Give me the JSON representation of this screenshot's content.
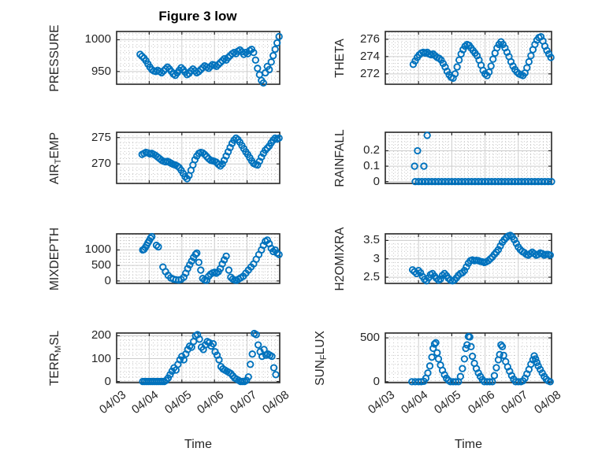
{
  "title": "Figure 3 low",
  "xlabel": "Time",
  "colors": {
    "marker": "#0072BD",
    "axis": "#262626",
    "major_grid": "#cdcdcd",
    "minor_grid": "#c6c6c6",
    "text": "#262626",
    "plot_bg": "#ffffff"
  },
  "x_tick_labels": [
    "04/03",
    "04/04",
    "04/05",
    "04/06",
    "04/07",
    "04/08"
  ],
  "chart_data": [
    {
      "name": "PRESSURE",
      "type": "scatter",
      "marker": "o",
      "row": 0,
      "col": 0,
      "ylabel_parts": [
        {
          "t": "PRESSURE"
        }
      ],
      "xlim": [
        0,
        5
      ],
      "ylim": [
        930,
        1013
      ],
      "yticks": [
        950,
        1000
      ],
      "ytick_labels": [
        "950",
        "1000"
      ],
      "x": [
        0.72,
        0.78,
        0.84,
        0.9,
        0.96,
        1.02,
        1.08,
        1.14,
        1.2,
        1.26,
        1.32,
        1.38,
        1.44,
        1.5,
        1.56,
        1.62,
        1.68,
        1.74,
        1.8,
        1.86,
        1.92,
        1.98,
        2.04,
        2.1,
        2.16,
        2.22,
        2.28,
        2.34,
        2.4,
        2.46,
        2.52,
        2.58,
        2.64,
        2.7,
        2.76,
        2.82,
        2.88,
        2.94,
        3.0,
        3.06,
        3.12,
        3.18,
        3.24,
        3.3,
        3.36,
        3.42,
        3.48,
        3.54,
        3.6,
        3.66,
        3.72,
        3.78,
        3.84,
        3.9,
        3.96,
        4.02,
        4.08,
        4.14,
        4.2,
        4.26,
        4.32,
        4.38,
        4.44,
        4.5,
        4.56,
        4.62,
        4.68,
        4.74,
        4.8,
        4.86,
        4.92,
        4.98
      ],
      "y": [
        977,
        974,
        971,
        967,
        962,
        957,
        953,
        951,
        950,
        952,
        950,
        948,
        951,
        954,
        957,
        954,
        950,
        946,
        944,
        948,
        952,
        956,
        953,
        949,
        945,
        947,
        951,
        954,
        951,
        948,
        950,
        953,
        956,
        959,
        957,
        955,
        958,
        961,
        960,
        958,
        961,
        964,
        967,
        970,
        968,
        972,
        975,
        978,
        980,
        978,
        982,
        984,
        981,
        977,
        980,
        978,
        983,
        985,
        980,
        968,
        955,
        945,
        936,
        932,
        948,
        958,
        953,
        965,
        975,
        985,
        995,
        1005
      ]
    },
    {
      "name": "THETA",
      "type": "scatter",
      "marker": "o",
      "row": 0,
      "col": 1,
      "ylabel_parts": [
        {
          "t": "THETA"
        }
      ],
      "xlim": [
        0,
        5
      ],
      "ylim": [
        270.8,
        276.9
      ],
      "yticks": [
        272,
        274,
        276
      ],
      "ytick_labels": [
        "272",
        "274",
        "276"
      ],
      "x": [
        0.84,
        0.9,
        0.96,
        1.02,
        1.08,
        1.14,
        1.2,
        1.26,
        1.32,
        1.38,
        1.44,
        1.5,
        1.56,
        1.62,
        1.68,
        1.74,
        1.8,
        1.86,
        1.92,
        1.98,
        2.04,
        2.1,
        2.16,
        2.22,
        2.28,
        2.34,
        2.4,
        2.46,
        2.52,
        2.58,
        2.64,
        2.7,
        2.76,
        2.82,
        2.88,
        2.94,
        3.0,
        3.06,
        3.12,
        3.18,
        3.24,
        3.3,
        3.36,
        3.42,
        3.48,
        3.54,
        3.6,
        3.66,
        3.72,
        3.78,
        3.84,
        3.9,
        3.96,
        4.02,
        4.08,
        4.14,
        4.2,
        4.26,
        4.32,
        4.38,
        4.44,
        4.5,
        4.56,
        4.62,
        4.68,
        4.74,
        4.8,
        4.86,
        4.92,
        4.98
      ],
      "y": [
        273.1,
        273.5,
        273.9,
        274.2,
        274.4,
        274.5,
        274.4,
        274.5,
        274.3,
        274.2,
        274.3,
        274.1,
        273.9,
        273.8,
        273.6,
        273.2,
        272.8,
        272.3,
        271.9,
        271.6,
        271.5,
        272.0,
        272.8,
        273.6,
        274.3,
        274.8,
        275.2,
        275.4,
        275.3,
        275.0,
        274.7,
        274.4,
        274.1,
        273.6,
        273.0,
        272.4,
        272.0,
        271.8,
        272.2,
        272.9,
        273.7,
        274.4,
        275.0,
        275.4,
        275.7,
        275.4,
        275.0,
        274.5,
        274.0,
        273.4,
        272.9,
        272.5,
        272.2,
        272.0,
        271.9,
        271.8,
        272.1,
        272.7,
        273.4,
        274.1,
        274.8,
        275.4,
        275.9,
        276.2,
        276.3,
        275.8,
        275.2,
        274.7,
        274.3,
        273.9
      ]
    },
    {
      "name": "AIR_TEMP",
      "type": "scatter",
      "marker": "o",
      "row": 1,
      "col": 0,
      "ylabel_parts": [
        {
          "t": "AIR"
        },
        {
          "t": "T",
          "sub": true
        },
        {
          "t": "EMP"
        }
      ],
      "xlim": [
        0,
        5
      ],
      "ylim": [
        266.3,
        276.0
      ],
      "yticks": [
        270,
        275
      ],
      "ytick_labels": [
        "270",
        "275"
      ],
      "x": [
        0.78,
        0.84,
        0.9,
        0.96,
        1.02,
        1.08,
        1.14,
        1.2,
        1.26,
        1.32,
        1.38,
        1.44,
        1.5,
        1.56,
        1.62,
        1.68,
        1.74,
        1.8,
        1.86,
        1.92,
        1.98,
        2.04,
        2.1,
        2.16,
        2.22,
        2.28,
        2.34,
        2.4,
        2.46,
        2.52,
        2.58,
        2.64,
        2.7,
        2.76,
        2.82,
        2.88,
        2.94,
        3.0,
        3.06,
        3.12,
        3.18,
        3.24,
        3.3,
        3.36,
        3.42,
        3.48,
        3.54,
        3.6,
        3.66,
        3.72,
        3.78,
        3.84,
        3.9,
        3.96,
        4.02,
        4.08,
        4.14,
        4.2,
        4.26,
        4.32,
        4.38,
        4.44,
        4.5,
        4.56,
        4.62,
        4.68,
        4.74,
        4.8,
        4.86,
        4.92,
        4.98
      ],
      "y": [
        271.8,
        272.0,
        272.2,
        272.1,
        271.9,
        272.0,
        271.8,
        271.6,
        271.3,
        271.0,
        270.7,
        270.5,
        270.4,
        270.5,
        270.3,
        270.1,
        269.9,
        269.8,
        269.6,
        269.3,
        268.8,
        268.2,
        267.6,
        267.2,
        267.8,
        268.8,
        269.8,
        270.8,
        271.5,
        272.0,
        272.2,
        272.1,
        271.8,
        271.4,
        271.0,
        270.7,
        270.6,
        270.5,
        270.3,
        269.9,
        269.6,
        270.0,
        270.7,
        271.5,
        272.3,
        273.1,
        273.9,
        274.5,
        274.9,
        274.6,
        274.1,
        273.5,
        272.9,
        272.3,
        271.8,
        271.2,
        270.6,
        270.1,
        269.9,
        269.8,
        270.5,
        271.3,
        272.0,
        272.6,
        273.0,
        273.4,
        274.0,
        274.5,
        274.9,
        274.7,
        274.9
      ]
    },
    {
      "name": "RAINFALL",
      "type": "scatter",
      "marker": "o",
      "row": 1,
      "col": 1,
      "ylabel_parts": [
        {
          "t": "RAINFALL"
        }
      ],
      "xlim": [
        0,
        5
      ],
      "ylim": [
        -0.012,
        0.32
      ],
      "yticks": [
        0,
        0.1,
        0.2
      ],
      "ytick_labels": [
        "0",
        "0.1",
        "0.2"
      ],
      "x": [
        0.88,
        0.97,
        1.16,
        1.26,
        0.9,
        1.0,
        1.1,
        1.2,
        1.3,
        1.4,
        1.5,
        1.6,
        1.7,
        1.8,
        1.9,
        2.0,
        2.1,
        2.2,
        2.3,
        2.4,
        2.5,
        2.6,
        2.7,
        2.8,
        2.9,
        3.0,
        3.1,
        3.2,
        3.3,
        3.4,
        3.5,
        3.6,
        3.7,
        3.8,
        3.9,
        4.0,
        4.1,
        4.2,
        4.3,
        4.4,
        4.5,
        4.6,
        4.7,
        4.8,
        4.9,
        5.0
      ],
      "y": [
        0.1,
        0.2,
        0.1,
        0.3,
        0,
        0,
        0,
        0,
        0,
        0,
        0,
        0,
        0,
        0,
        0,
        0,
        0,
        0,
        0,
        0,
        0,
        0,
        0,
        0,
        0,
        0,
        0,
        0,
        0,
        0,
        0,
        0,
        0,
        0,
        0,
        0,
        0,
        0,
        0,
        0,
        0,
        0,
        0,
        0,
        0,
        0
      ]
    },
    {
      "name": "MIXDEPTH",
      "type": "scatter",
      "marker": "o",
      "row": 2,
      "col": 0,
      "ylabel_parts": [
        {
          "t": "MIXDEPTH"
        }
      ],
      "xlim": [
        0,
        5
      ],
      "ylim": [
        -80,
        1520
      ],
      "yticks": [
        0,
        500,
        1000
      ],
      "ytick_labels": [
        "0",
        "500",
        "1000"
      ],
      "x": [
        0.8,
        0.84,
        0.88,
        0.92,
        0.96,
        1.0,
        1.04,
        1.08,
        1.22,
        1.28,
        1.42,
        1.5,
        1.58,
        1.66,
        1.74,
        1.82,
        1.9,
        1.98,
        2.06,
        2.12,
        2.18,
        2.24,
        2.3,
        2.36,
        2.42,
        2.46,
        2.52,
        2.58,
        2.64,
        2.7,
        2.76,
        2.82,
        2.88,
        2.94,
        3.0,
        3.06,
        3.12,
        3.18,
        3.24,
        3.3,
        3.36,
        3.44,
        3.5,
        3.56,
        3.62,
        3.68,
        3.74,
        3.8,
        3.88,
        3.96,
        4.04,
        4.12,
        4.2,
        4.28,
        4.36,
        4.44,
        4.5,
        4.56,
        4.62,
        4.68,
        4.74,
        4.8,
        4.86,
        4.92,
        4.98
      ],
      "y": [
        1000,
        1020,
        1080,
        1150,
        1230,
        1300,
        1380,
        1430,
        1150,
        1100,
        450,
        300,
        180,
        100,
        60,
        40,
        30,
        50,
        120,
        250,
        400,
        520,
        640,
        760,
        860,
        900,
        600,
        350,
        80,
        30,
        20,
        150,
        220,
        260,
        280,
        250,
        300,
        400,
        550,
        680,
        800,
        350,
        120,
        60,
        30,
        20,
        60,
        100,
        150,
        250,
        350,
        450,
        550,
        700,
        850,
        1000,
        1150,
        1280,
        1320,
        1200,
        1050,
        950,
        1000,
        900,
        850
      ]
    },
    {
      "name": "H2OMIXRA",
      "type": "scatter",
      "marker": "o",
      "row": 2,
      "col": 1,
      "ylabel_parts": [
        {
          "t": "H2OMIXRA"
        }
      ],
      "xlim": [
        0,
        5
      ],
      "ylim": [
        2.33,
        3.68
      ],
      "yticks": [
        2.5,
        3,
        3.5
      ],
      "ytick_labels": [
        "2.5",
        "3",
        "3.5"
      ],
      "x": [
        0.82,
        0.88,
        0.94,
        1.0,
        1.06,
        1.12,
        1.18,
        1.24,
        1.3,
        1.36,
        1.42,
        1.48,
        1.54,
        1.6,
        1.66,
        1.72,
        1.78,
        1.84,
        1.9,
        1.96,
        2.02,
        2.08,
        2.14,
        2.2,
        2.26,
        2.32,
        2.38,
        2.44,
        2.5,
        2.56,
        2.62,
        2.68,
        2.74,
        2.8,
        2.86,
        2.92,
        2.98,
        3.04,
        3.1,
        3.16,
        3.22,
        3.28,
        3.34,
        3.4,
        3.46,
        3.52,
        3.58,
        3.64,
        3.7,
        3.76,
        3.82,
        3.88,
        3.94,
        4.0,
        4.06,
        4.12,
        4.18,
        4.24,
        4.3,
        4.36,
        4.42,
        4.48,
        4.54,
        4.6,
        4.66,
        4.72,
        4.78,
        4.84,
        4.9,
        4.96
      ],
      "y": [
        2.7,
        2.65,
        2.6,
        2.68,
        2.62,
        2.52,
        2.44,
        2.4,
        2.48,
        2.57,
        2.6,
        2.53,
        2.47,
        2.42,
        2.45,
        2.55,
        2.6,
        2.54,
        2.47,
        2.42,
        2.4,
        2.42,
        2.48,
        2.55,
        2.6,
        2.62,
        2.68,
        2.78,
        2.88,
        2.95,
        2.97,
        2.95,
        2.96,
        2.95,
        2.93,
        2.92,
        2.9,
        2.92,
        2.95,
        3.0,
        3.05,
        3.12,
        3.18,
        3.25,
        3.35,
        3.45,
        3.52,
        3.58,
        3.62,
        3.64,
        3.6,
        3.52,
        3.42,
        3.32,
        3.25,
        3.2,
        3.17,
        3.12,
        3.1,
        3.14,
        3.18,
        3.14,
        3.1,
        3.12,
        3.16,
        3.14,
        3.1,
        3.12,
        3.12,
        3.1
      ]
    },
    {
      "name": "TERR_MSL",
      "type": "scatter",
      "marker": "o",
      "row": 3,
      "col": 0,
      "ylabel_parts": [
        {
          "t": "TERR"
        },
        {
          "t": "M",
          "sub": true
        },
        {
          "t": "SL"
        }
      ],
      "xlim": [
        0,
        5
      ],
      "ylim": [
        -5,
        212
      ],
      "yticks": [
        0,
        100,
        200
      ],
      "ytick_labels": [
        "0",
        "100",
        "200"
      ],
      "x": [
        0.8,
        0.86,
        0.92,
        0.98,
        1.04,
        1.1,
        1.16,
        1.22,
        1.28,
        1.34,
        1.4,
        1.46,
        1.52,
        1.58,
        1.64,
        1.7,
        1.76,
        1.82,
        1.88,
        1.94,
        2.0,
        2.06,
        2.12,
        2.18,
        2.24,
        2.3,
        2.36,
        2.42,
        2.48,
        2.54,
        2.6,
        2.66,
        2.72,
        2.78,
        2.84,
        2.9,
        2.96,
        3.02,
        3.08,
        3.14,
        3.2,
        3.26,
        3.32,
        3.38,
        3.44,
        3.5,
        3.56,
        3.62,
        3.68,
        3.74,
        3.8,
        3.86,
        3.92,
        3.98,
        4.04,
        4.1,
        4.16,
        4.22,
        4.28,
        4.34,
        4.4,
        4.46,
        4.52,
        4.58,
        4.64,
        4.7,
        4.76,
        4.82,
        4.88
      ],
      "y": [
        0,
        0,
        0,
        0,
        0,
        0,
        0,
        0,
        0,
        0,
        0,
        0,
        5,
        15,
        30,
        45,
        60,
        50,
        75,
        95,
        110,
        95,
        120,
        140,
        155,
        150,
        175,
        200,
        205,
        185,
        150,
        140,
        160,
        175,
        170,
        155,
        165,
        130,
        115,
        95,
        65,
        55,
        50,
        45,
        40,
        35,
        25,
        15,
        10,
        5,
        0,
        0,
        0,
        5,
        20,
        75,
        120,
        210,
        205,
        160,
        130,
        110,
        140,
        115,
        120,
        115,
        110,
        60,
        30
      ]
    },
    {
      "name": "SUN_FLUX",
      "type": "scatter",
      "marker": "o",
      "row": 3,
      "col": 1,
      "ylabel_parts": [
        {
          "t": "SUN"
        },
        {
          "t": "F",
          "sub": true
        },
        {
          "t": "LUX"
        }
      ],
      "xlim": [
        0,
        5
      ],
      "ylim": [
        -10,
        555
      ],
      "yticks": [
        0,
        500
      ],
      "ytick_labels": [
        "0",
        "500"
      ],
      "x": [
        0.8,
        0.9,
        1.0,
        1.08,
        1.16,
        1.22,
        1.28,
        1.34,
        1.4,
        1.44,
        1.48,
        1.52,
        1.56,
        1.6,
        1.66,
        1.72,
        1.78,
        1.84,
        1.9,
        1.96,
        2.04,
        2.12,
        2.2,
        2.26,
        2.32,
        2.38,
        2.42,
        2.46,
        2.5,
        2.54,
        2.58,
        2.62,
        2.68,
        2.74,
        2.8,
        2.86,
        2.92,
        2.98,
        3.06,
        3.14,
        3.22,
        3.28,
        3.34,
        3.4,
        3.44,
        3.48,
        3.52,
        3.56,
        3.62,
        3.68,
        3.74,
        3.8,
        3.86,
        3.92,
        4.0,
        4.08,
        4.14,
        4.2,
        4.26,
        4.32,
        4.38,
        4.44,
        4.48,
        4.52,
        4.56,
        4.6,
        4.66,
        4.72,
        4.78,
        4.84,
        4.9,
        4.96
      ],
      "y": [
        0,
        0,
        0,
        0,
        5,
        40,
        100,
        180,
        280,
        380,
        430,
        445,
        330,
        260,
        190,
        130,
        80,
        40,
        15,
        0,
        0,
        0,
        0,
        60,
        150,
        260,
        380,
        420,
        515,
        510,
        400,
        290,
        210,
        150,
        100,
        60,
        25,
        0,
        0,
        0,
        0,
        70,
        160,
        250,
        310,
        420,
        400,
        300,
        230,
        170,
        120,
        70,
        30,
        0,
        0,
        0,
        10,
        40,
        90,
        140,
        200,
        250,
        295,
        260,
        220,
        180,
        140,
        100,
        60,
        30,
        10,
        0
      ]
    }
  ]
}
